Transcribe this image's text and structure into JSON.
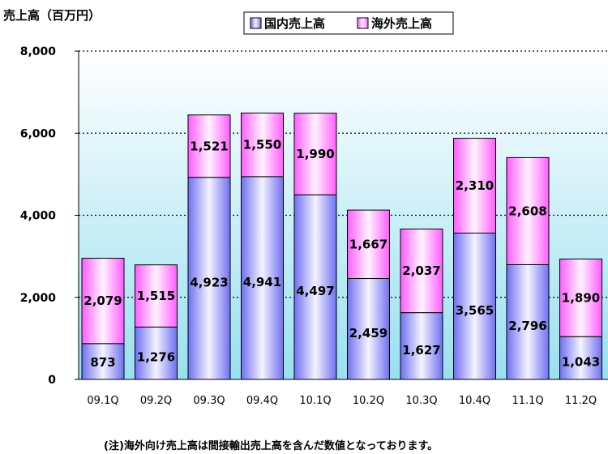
{
  "chart_data": {
    "type": "bar",
    "stacked": true,
    "ylabel": "売上高（百万円）",
    "ylim": [
      0,
      8000
    ],
    "yticks": [
      0,
      2000,
      4000,
      6000,
      8000
    ],
    "ytick_labels": [
      "0",
      "2,000",
      "4,000",
      "6,000",
      "8,000"
    ],
    "grid": true,
    "legend_position": "top",
    "categories": [
      "09.1Q",
      "09.2Q",
      "09.3Q",
      "09.4Q",
      "10.1Q",
      "10.2Q",
      "10.3Q",
      "10.4Q",
      "11.1Q",
      "11.2Q"
    ],
    "series": [
      {
        "name": "国内売上高",
        "color": "#8080ff",
        "values": [
          873,
          1276,
          4923,
          4941,
          4497,
          2459,
          1627,
          3565,
          2796,
          1043
        ],
        "labels": [
          "873",
          "1,276",
          "4,923",
          "4,941",
          "4,497",
          "2,459",
          "1,627",
          "3,565",
          "2,796",
          "1,043"
        ]
      },
      {
        "name": "海外売上高",
        "color": "#ff66ff",
        "values": [
          2079,
          1515,
          1521,
          1550,
          1990,
          1667,
          2037,
          2310,
          2608,
          1890
        ],
        "labels": [
          "2,079",
          "1,515",
          "1,521",
          "1,550",
          "1,990",
          "1,667",
          "2,037",
          "2,310",
          "2,608",
          "1,890"
        ]
      }
    ],
    "note": "(注)海外向け売上高は間接輸出売上高を含んだ数値となっております。"
  }
}
